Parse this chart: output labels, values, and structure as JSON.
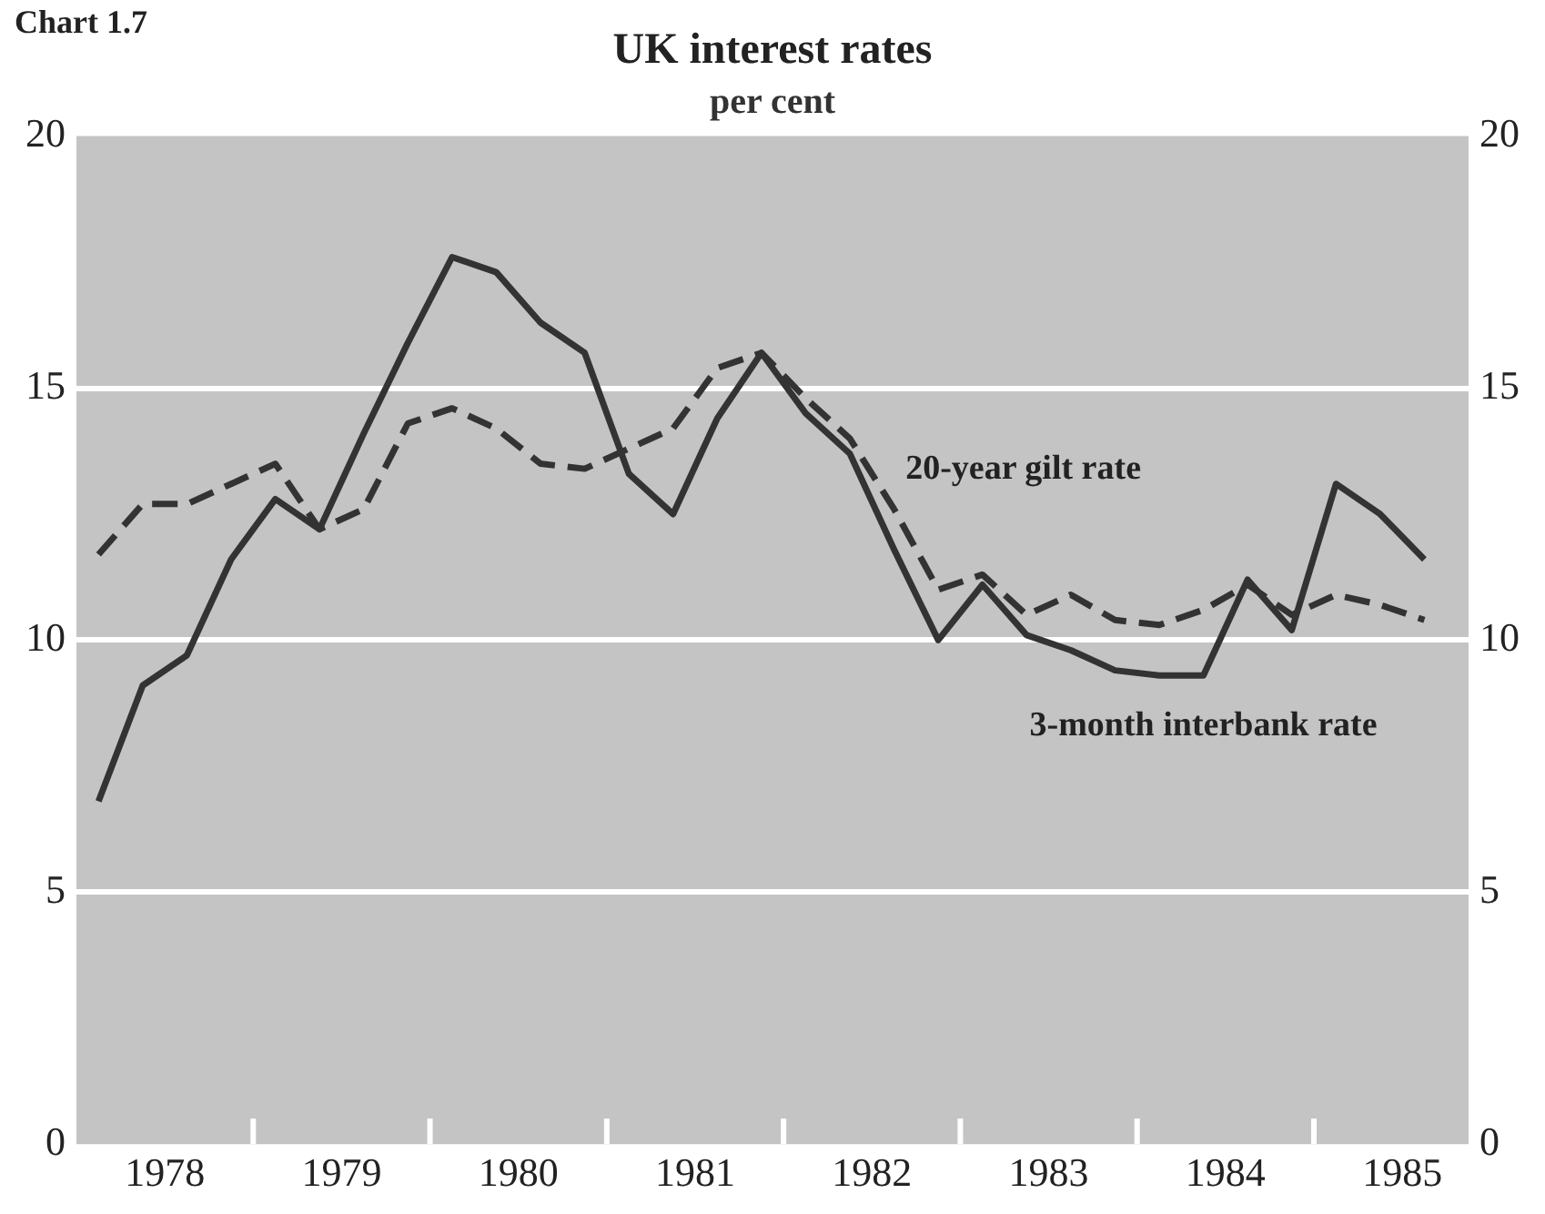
{
  "chart_data": {
    "type": "line",
    "title": "UK interest rates",
    "subtitle": "per cent",
    "annotations": [
      "Chart 1.7"
    ],
    "x": [
      1978.125,
      1978.375,
      1978.625,
      1978.875,
      1979.125,
      1979.375,
      1979.625,
      1979.875,
      1980.125,
      1980.375,
      1980.625,
      1980.875,
      1981.125,
      1981.375,
      1981.625,
      1981.875,
      1982.125,
      1982.375,
      1982.625,
      1982.875,
      1983.125,
      1983.375,
      1983.625,
      1983.875,
      1984.125,
      1984.375,
      1984.625,
      1984.875,
      1985.125,
      1985.375,
      1985.625
    ],
    "series": [
      {
        "name": "3-month interbank rate",
        "color": "#333333",
        "line_style": "solid",
        "values": [
          6.8,
          9.1,
          9.7,
          11.6,
          12.8,
          12.2,
          14.1,
          15.9,
          17.6,
          17.3,
          16.3,
          15.7,
          13.3,
          12.5,
          14.4,
          15.7,
          14.5,
          13.7,
          11.8,
          10.0,
          11.1,
          10.1,
          9.8,
          9.4,
          9.3,
          9.3,
          11.2,
          10.2,
          13.1,
          12.5,
          11.6
        ]
      },
      {
        "name": "20-year gilt rate",
        "color": "#333333",
        "line_style": "dashed",
        "values": [
          11.7,
          12.7,
          12.7,
          13.1,
          13.5,
          12.2,
          12.6,
          14.3,
          14.6,
          14.2,
          13.5,
          13.4,
          13.8,
          14.2,
          15.4,
          15.7,
          14.8,
          14.0,
          12.6,
          11.0,
          11.3,
          10.5,
          10.9,
          10.4,
          10.3,
          10.6,
          11.1,
          10.5,
          10.9,
          10.7,
          10.4
        ]
      }
    ],
    "xlim": [
      1978,
      1985.875
    ],
    "xticks": [
      {
        "value": 1978.5,
        "label": "1978"
      },
      {
        "value": 1979,
        "label": null
      },
      {
        "value": 1979.5,
        "label": "1979"
      },
      {
        "value": 1980,
        "label": null
      },
      {
        "value": 1980.5,
        "label": "1980"
      },
      {
        "value": 1981,
        "label": null
      },
      {
        "value": 1981.5,
        "label": "1981"
      },
      {
        "value": 1982,
        "label": null
      },
      {
        "value": 1982.5,
        "label": "1982"
      },
      {
        "value": 1983,
        "label": null
      },
      {
        "value": 1983.5,
        "label": "1983"
      },
      {
        "value": 1984,
        "label": null
      },
      {
        "value": 1984.5,
        "label": "1984"
      },
      {
        "value": 1985,
        "label": null
      },
      {
        "value": 1985.5,
        "label": "1985"
      }
    ],
    "ylim": [
      0,
      20
    ],
    "yticks": [
      0,
      5,
      10,
      15,
      20
    ],
    "y2lim": [
      0,
      20
    ],
    "y2ticks": [
      0,
      5,
      10,
      15,
      20
    ],
    "grid": "y",
    "legend": false,
    "marker": "none"
  }
}
